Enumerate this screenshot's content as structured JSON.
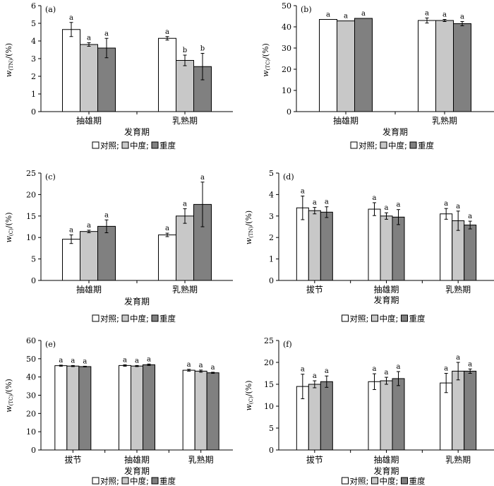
{
  "legend": [
    {
      "name": "对照",
      "sep": ";",
      "color": "#ffffff"
    },
    {
      "name": "中度",
      "sep": ";",
      "color": "#c8c8c8"
    },
    {
      "name": "重度",
      "sep": "",
      "color": "#808080"
    }
  ],
  "chart_data": [
    {
      "panel": "(a)",
      "type": "bar",
      "ylabel_base": "w",
      "ylabel_sub": "(TN)",
      "ylabel_rest": "/(%)",
      "xlabel": "发育期",
      "categories": [
        "抽雄期",
        "乳熟期"
      ],
      "ylim": [
        0,
        6
      ],
      "yticks": [
        0,
        1,
        2,
        3,
        4,
        5,
        6
      ],
      "series": [
        {
          "values": [
            4.65,
            4.15
          ],
          "errors": [
            0.4,
            0.1
          ],
          "sig": [
            "a",
            "a"
          ]
        },
        {
          "values": [
            3.8,
            2.9
          ],
          "errors": [
            0.1,
            0.3
          ],
          "sig": [
            "a",
            "b"
          ]
        },
        {
          "values": [
            3.6,
            2.55
          ],
          "errors": [
            0.55,
            0.75
          ],
          "sig": [
            "a",
            "b"
          ]
        }
      ]
    },
    {
      "panel": "(b)",
      "type": "bar",
      "ylabel_base": "w",
      "ylabel_sub": "(TC)",
      "ylabel_rest": "/(%)",
      "xlabel": "发育期",
      "categories": [
        "抽雄期",
        "乳熟期"
      ],
      "ylim": [
        0,
        50
      ],
      "yticks": [
        0,
        10,
        20,
        30,
        40,
        50
      ],
      "series": [
        {
          "values": [
            43.5,
            43.0
          ],
          "errors": [
            0.0,
            1.2
          ],
          "sig": [
            "a",
            "a"
          ]
        },
        {
          "values": [
            42.8,
            43.0
          ],
          "errors": [
            0.0,
            0.5
          ],
          "sig": [
            "a",
            "a"
          ]
        },
        {
          "values": [
            44.0,
            41.5
          ],
          "errors": [
            0.0,
            1.0
          ],
          "sig": [
            "a",
            "a"
          ]
        }
      ]
    },
    {
      "panel": "(c)",
      "type": "bar",
      "ylabel_base": "w",
      "ylabel_sub": "(C)",
      "ylabel_rest": "/(%)",
      "xlabel": "发育期",
      "categories": [
        "抽雄期",
        "乳熟期"
      ],
      "ylim": [
        0,
        25
      ],
      "yticks": [
        0,
        5,
        10,
        15,
        20,
        25
      ],
      "series": [
        {
          "values": [
            9.6,
            10.6
          ],
          "errors": [
            1.0,
            0.4
          ],
          "sig": [
            "a",
            "a"
          ]
        },
        {
          "values": [
            11.4,
            15.0
          ],
          "errors": [
            0.3,
            1.7
          ],
          "sig": [
            "a",
            "a"
          ]
        },
        {
          "values": [
            12.6,
            17.7
          ],
          "errors": [
            1.5,
            5.2
          ],
          "sig": [
            "a",
            "a"
          ]
        }
      ]
    },
    {
      "panel": "(d)",
      "type": "bar",
      "ylabel_base": "w",
      "ylabel_sub": "(TN)",
      "ylabel_rest": "/(%)",
      "xlabel": "发育期",
      "categories": [
        "拔节",
        "抽雄期",
        "乳熟期"
      ],
      "ylim": [
        0,
        5
      ],
      "yticks": [
        0,
        1,
        2,
        3,
        4,
        5
      ],
      "series": [
        {
          "values": [
            3.38,
            3.32,
            3.1
          ],
          "errors": [
            0.55,
            0.3,
            0.25
          ],
          "sig": [
            "a",
            "a",
            "a"
          ]
        },
        {
          "values": [
            3.25,
            3.0,
            2.78
          ],
          "errors": [
            0.15,
            0.15,
            0.45
          ],
          "sig": [
            "a",
            "a",
            "a"
          ]
        },
        {
          "values": [
            3.18,
            2.95,
            2.58
          ],
          "errors": [
            0.25,
            0.35,
            0.18
          ],
          "sig": [
            "a",
            "a",
            "a"
          ]
        }
      ]
    },
    {
      "panel": "(e)",
      "type": "bar",
      "ylabel_base": "w",
      "ylabel_sub": "(TC)",
      "ylabel_rest": "/(%)",
      "xlabel": "发育期",
      "categories": [
        "拔节",
        "抽雄期",
        "乳熟期"
      ],
      "ylim": [
        0,
        60
      ],
      "yticks": [
        0,
        10,
        20,
        30,
        40,
        50,
        60
      ],
      "series": [
        {
          "values": [
            46.2,
            46.3,
            43.7
          ],
          "errors": [
            0.3,
            0.4,
            0.5
          ],
          "sig": [
            "a",
            "a",
            "a"
          ]
        },
        {
          "values": [
            46.0,
            46.0,
            43.2
          ],
          "errors": [
            0.3,
            0.3,
            0.6
          ],
          "sig": [
            "a",
            "a",
            "a"
          ]
        },
        {
          "values": [
            45.7,
            46.7,
            42.3
          ],
          "errors": [
            0.2,
            0.4,
            0.3
          ],
          "sig": [
            "a",
            "a",
            "a"
          ]
        }
      ]
    },
    {
      "panel": "(f)",
      "type": "bar",
      "ylabel_base": "w",
      "ylabel_sub": "(C)",
      "ylabel_rest": "/(%)",
      "xlabel": "发育期",
      "categories": [
        "拔节",
        "抽雄期",
        "乳熟期"
      ],
      "ylim": [
        0,
        25
      ],
      "yticks": [
        0,
        5,
        10,
        15,
        20,
        25
      ],
      "series": [
        {
          "values": [
            14.5,
            15.6,
            15.3
          ],
          "errors": [
            2.8,
            1.8,
            2.2
          ],
          "sig": [
            "a",
            "a",
            "a"
          ]
        },
        {
          "values": [
            15.0,
            15.8,
            18.0
          ],
          "errors": [
            0.8,
            0.8,
            2.0
          ],
          "sig": [
            "a",
            "a",
            "a"
          ]
        },
        {
          "values": [
            15.6,
            16.3,
            18.0
          ],
          "errors": [
            1.3,
            1.6,
            0.5
          ],
          "sig": [
            "a",
            "a",
            "a"
          ]
        }
      ]
    }
  ]
}
